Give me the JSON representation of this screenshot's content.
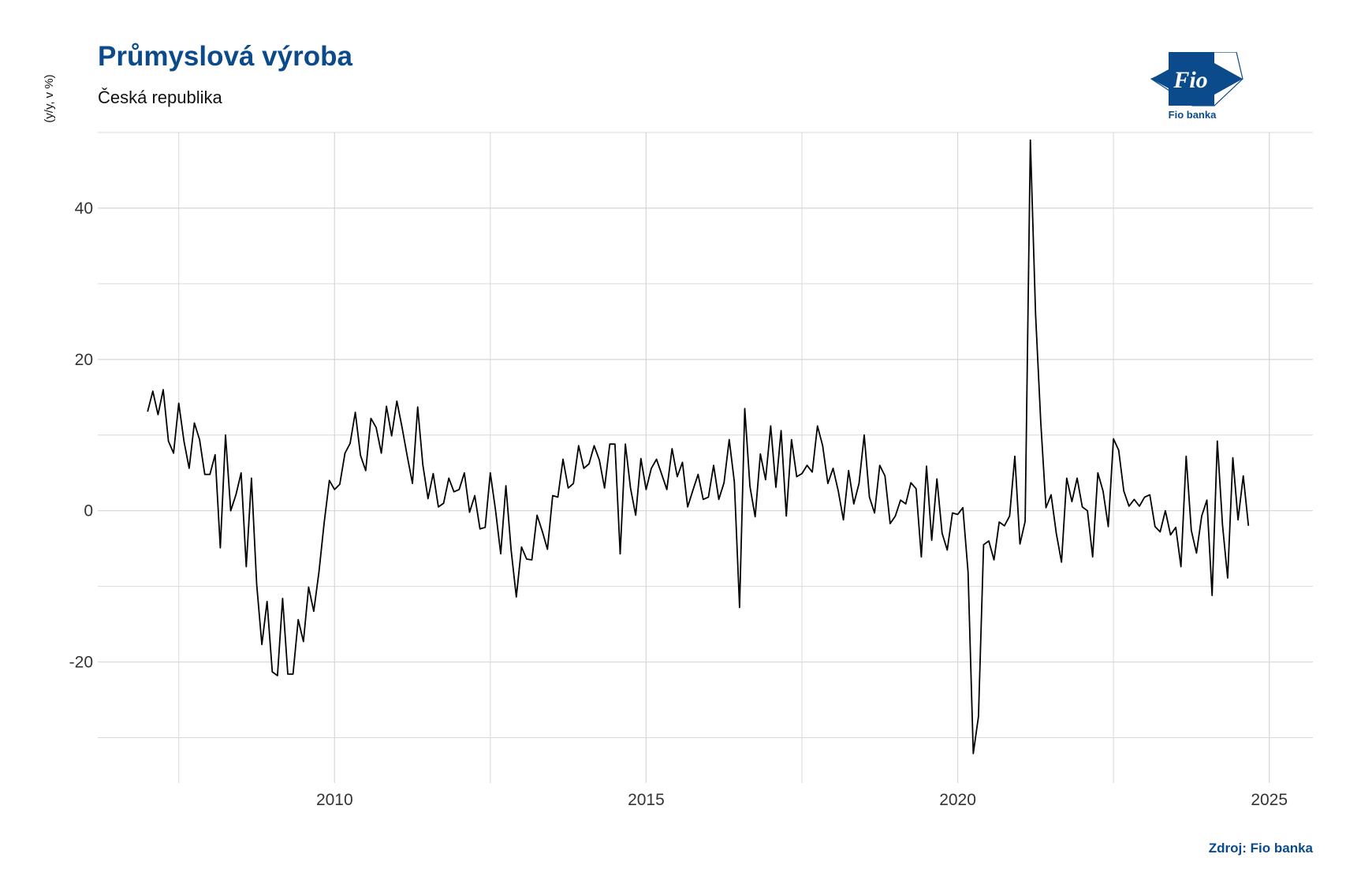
{
  "title": "Průmyslová výroba",
  "subtitle": "Česká republika",
  "source": "Zdroj: Fio banka",
  "logo": {
    "name": "fio-banka-logo",
    "text": "Fio",
    "caption": "Fio banka"
  },
  "colors": {
    "title": "#0b4a8b",
    "line": "#000000",
    "grid": "#d9d9d9"
  },
  "chart_data": {
    "type": "line",
    "title": "Průmyslová výroba",
    "subtitle": "Česká republika",
    "xlabel": "",
    "ylabel": "(y/y, v %)",
    "x_ticks": [
      "2010",
      "2015",
      "2020",
      "2025"
    ],
    "y_ticks": [
      "-20",
      "0",
      "20",
      "40"
    ],
    "xlim": [
      2006.2,
      2025.7
    ],
    "ylim": [
      -36,
      50
    ],
    "grid": true,
    "legend": "none",
    "series": [
      {
        "x_start": 2007.0,
        "step": 0.08333,
        "values": [
          13.1,
          15.8,
          12.7,
          16.0,
          9.2,
          7.6,
          14.2,
          9.2,
          5.6,
          11.6,
          9.4,
          4.8,
          4.8,
          7.4,
          -4.9,
          10.0,
          0.0,
          2.1,
          5.0,
          -7.4,
          4.3,
          -9.7,
          -17.7,
          -12.0,
          -21.3,
          -21.8,
          -11.6,
          -21.6,
          -21.6,
          -14.4,
          -17.3,
          -10.1,
          -13.3,
          -8.1,
          -1.6,
          4.0,
          2.8,
          3.5,
          7.6,
          8.9,
          13.0,
          7.3,
          5.3,
          12.2,
          11.0,
          7.6,
          13.8,
          9.9,
          14.5,
          11.0,
          7.2,
          3.6,
          13.7,
          6.1,
          1.6,
          4.9,
          0.5,
          1.0,
          4.3,
          2.5,
          2.8,
          5.0,
          -0.2,
          2.0,
          -2.4,
          -2.2,
          5.0,
          0.1,
          -5.7,
          3.3,
          -5.2,
          -11.4,
          -4.8,
          -6.4,
          -6.5,
          -0.6,
          -2.7,
          -5.1,
          2.0,
          1.8,
          6.8,
          3.0,
          3.6,
          8.6,
          5.6,
          6.2,
          8.6,
          6.7,
          3.0,
          8.8,
          8.8,
          -5.7,
          8.8,
          3.0,
          -0.6,
          6.9,
          2.8,
          5.6,
          6.8,
          4.8,
          2.8,
          8.2,
          4.5,
          6.4,
          0.5,
          2.7,
          4.8,
          1.5,
          1.8,
          6.0,
          1.5,
          3.7,
          9.4,
          3.8,
          -12.8,
          13.5,
          3.2,
          -0.8,
          7.5,
          4.1,
          11.2,
          3.1,
          10.6,
          -0.7,
          9.4,
          4.5,
          4.9,
          6.0,
          5.1,
          11.2,
          8.6,
          3.6,
          5.6,
          2.6,
          -1.2,
          5.3,
          0.9,
          3.6,
          10.0,
          1.8,
          -0.3,
          6.0,
          4.6,
          -1.7,
          -0.7,
          1.4,
          0.9,
          3.7,
          2.9,
          -6.1,
          5.9,
          -3.9,
          4.2,
          -3.0,
          -5.2,
          -0.3,
          -0.5,
          0.4,
          -8.1,
          -32.1,
          -27.2,
          -4.5,
          -4.0,
          -6.5,
          -1.5,
          -2.0,
          -0.7,
          7.2,
          -4.4,
          -1.4,
          49.0,
          26.0,
          11.7,
          0.4,
          2.1,
          -3.0,
          -6.8,
          4.3,
          1.2,
          4.3,
          0.5,
          0.0,
          -6.1,
          5.0,
          2.6,
          -2.1,
          9.5,
          8.0,
          2.6,
          0.6,
          1.5,
          0.6,
          1.8,
          2.1,
          -2.1,
          -2.8,
          0.0,
          -3.2,
          -2.2,
          -7.4,
          7.2,
          -2.6,
          -5.6,
          -0.7,
          1.4,
          -11.2,
          9.2,
          -1.9,
          -8.9,
          7.0,
          -1.2,
          4.6,
          -2.0
        ]
      }
    ]
  }
}
